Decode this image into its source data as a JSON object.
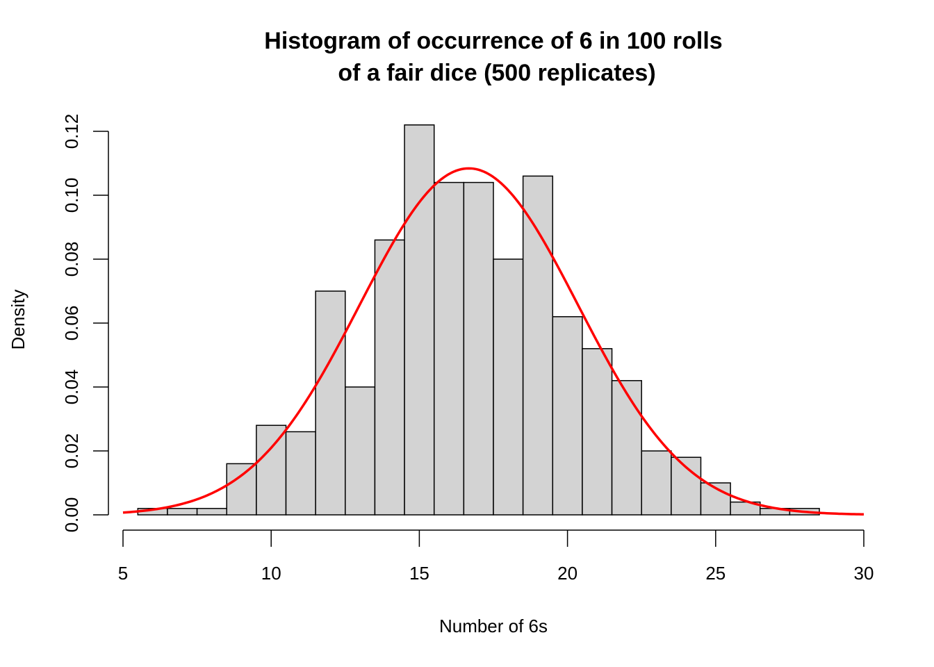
{
  "chart_data": {
    "type": "bar",
    "title_line1": "Histogram of occurrence of 6 in 100 rolls",
    "title_line2": "of a fair dice (500 replicates)",
    "xlabel": "Number of 6s",
    "ylabel": "Density",
    "xlim": [
      5,
      30
    ],
    "ylim": [
      0,
      0.12
    ],
    "x_ticks": [
      "5",
      "10",
      "15",
      "20",
      "25",
      "30"
    ],
    "y_ticks": [
      "0.00",
      "0.02",
      "0.04",
      "0.06",
      "0.08",
      "0.10",
      "0.12"
    ],
    "bins": [
      {
        "start": 5.5,
        "end": 6.5,
        "density": 0.002
      },
      {
        "start": 6.5,
        "end": 7.5,
        "density": 0.002
      },
      {
        "start": 7.5,
        "end": 8.5,
        "density": 0.002
      },
      {
        "start": 8.5,
        "end": 9.5,
        "density": 0.016
      },
      {
        "start": 9.5,
        "end": 10.5,
        "density": 0.028
      },
      {
        "start": 10.5,
        "end": 11.5,
        "density": 0.026
      },
      {
        "start": 11.5,
        "end": 12.5,
        "density": 0.07
      },
      {
        "start": 12.5,
        "end": 13.5,
        "density": 0.04
      },
      {
        "start": 13.5,
        "end": 14.5,
        "density": 0.086
      },
      {
        "start": 14.5,
        "end": 15.5,
        "density": 0.122
      },
      {
        "start": 15.5,
        "end": 16.5,
        "density": 0.104
      },
      {
        "start": 16.5,
        "end": 17.5,
        "density": 0.104
      },
      {
        "start": 17.5,
        "end": 18.5,
        "density": 0.08
      },
      {
        "start": 18.5,
        "end": 19.5,
        "density": 0.106
      },
      {
        "start": 19.5,
        "end": 20.5,
        "density": 0.062
      },
      {
        "start": 20.5,
        "end": 21.5,
        "density": 0.052
      },
      {
        "start": 21.5,
        "end": 22.5,
        "density": 0.042
      },
      {
        "start": 22.5,
        "end": 23.5,
        "density": 0.02
      },
      {
        "start": 23.5,
        "end": 24.5,
        "density": 0.018
      },
      {
        "start": 24.5,
        "end": 25.5,
        "density": 0.01
      },
      {
        "start": 25.5,
        "end": 26.5,
        "density": 0.004
      },
      {
        "start": 26.5,
        "end": 27.5,
        "density": 0.002
      },
      {
        "start": 27.5,
        "end": 28.5,
        "density": 0.002
      }
    ],
    "curve": {
      "type": "normal",
      "mean": 16.67,
      "sd": 3.68,
      "x_from": 5,
      "x_to": 30
    },
    "bar_fill": "#d3d3d3",
    "bar_stroke": "#000000",
    "curve_color": "#ff0000",
    "grid": false
  }
}
